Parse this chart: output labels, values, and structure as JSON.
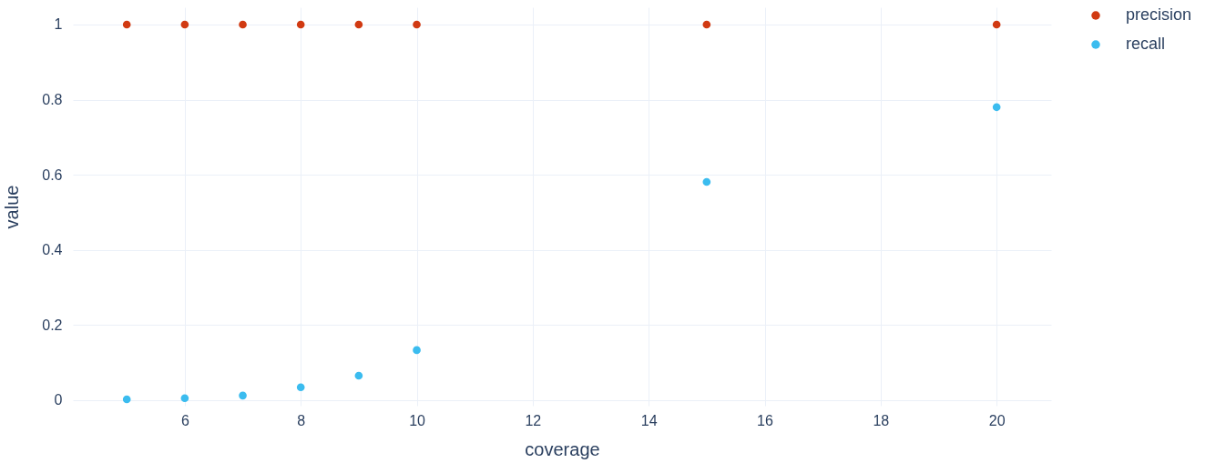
{
  "chart_data": {
    "type": "scatter",
    "xlabel": "coverage",
    "ylabel": "value",
    "x": [
      5,
      6,
      7,
      8,
      9,
      10,
      15,
      20
    ],
    "series": [
      {
        "name": "precision",
        "color": "#d13a12",
        "values": [
          1,
          1,
          1,
          1,
          1,
          1,
          1,
          1
        ]
      },
      {
        "name": "recall",
        "color": "#3bbcef",
        "values": [
          0.002,
          0.005,
          0.012,
          0.034,
          0.065,
          0.133,
          0.581,
          0.78
        ]
      }
    ],
    "xlim": [
      4.07,
      20.94
    ],
    "xticks": [
      6,
      8,
      10,
      12,
      14,
      16,
      18,
      20
    ],
    "ylim": [
      -0.015,
      1.046
    ],
    "yticks": [
      0,
      0.2,
      0.4,
      0.6,
      0.8,
      1
    ],
    "grid": true,
    "legend": "top right",
    "marker": "circle"
  }
}
